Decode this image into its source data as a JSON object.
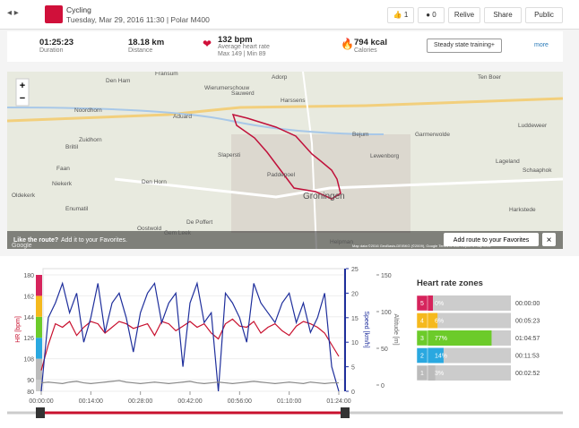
{
  "header": {
    "sport": "Cycling",
    "date": "Tuesday, Mar 29, 2016 11:30 | Polar M400",
    "likes": "1",
    "comments": "0",
    "buttons": [
      "Relive",
      "Share",
      "Public"
    ]
  },
  "summary": {
    "duration": "01:25:23",
    "duration_label": "Duration",
    "distance": "18.18 km",
    "distance_label": "Distance",
    "hr": "132 bpm",
    "hr_label": "Average heart rate",
    "hr_range": "Max 149 | Min 89",
    "calories": "794 kcal",
    "calories_label": "Calories",
    "training_button": "Steady state training+",
    "more": "more"
  },
  "map": {
    "labels": [
      "Den Ham",
      "Fransum",
      "Adorp",
      "Wierumerschouw",
      "Sauwerd",
      "Harssens",
      "Noordhorn",
      "Aduard",
      "Zuidhorn",
      "Briltil",
      "Slapersti",
      "Bejum",
      "Lewenborg",
      "Garmerwolde",
      "Ten Boer",
      "Luddeweer",
      "Lageland",
      "Schaaphok",
      "Faan",
      "Niekerk",
      "Oldekerk",
      "Den Horn",
      "Enumatil",
      "Paddepoel",
      "Groningen",
      "De Poffert",
      "Oostwold",
      "Gem Leek",
      "Helpman",
      "Harkstede"
    ],
    "like_text": "Like the route?",
    "add_link": "Add it to your Favorites.",
    "add_button": "Add route to your Favorites",
    "close": "×",
    "attribution": "Map data ©2016 GeoBasis-DE/BKG (©2009), Google  Terms of Use  Report a map error",
    "google": "Google"
  },
  "chart_data": {
    "type": "line",
    "ylabel": "HR [bpm]",
    "y2label": "Speed [km/h]",
    "y3label": "Altitude [m]",
    "x": [
      0,
      2,
      4,
      6,
      8,
      10,
      12,
      14,
      16,
      18,
      20,
      22,
      24,
      26,
      28,
      30,
      32,
      34,
      36,
      38,
      40,
      42,
      44,
      46,
      48,
      50,
      52,
      54,
      56,
      58,
      60,
      62,
      64,
      66,
      68,
      70,
      72,
      74,
      76,
      78,
      80,
      82,
      84
    ],
    "xlim": [
      0,
      84
    ],
    "xticks": [
      {
        "value": 0,
        "label": "00:00:00"
      },
      {
        "value": 14,
        "label": "00:14:00"
      },
      {
        "value": 28,
        "label": "00:28:00"
      },
      {
        "value": 42,
        "label": "00:42:00"
      },
      {
        "value": 56,
        "label": "00:56:00"
      },
      {
        "value": 70,
        "label": "01:10:00"
      },
      {
        "value": 84,
        "label": "01:24:00"
      }
    ],
    "ylim": [
      80,
      180
    ],
    "yticks": [
      80,
      90,
      108,
      126,
      144,
      162,
      180
    ],
    "y2lim": [
      0,
      25
    ],
    "y2ticks": [
      0,
      5,
      10,
      15,
      20,
      25
    ],
    "y3lim": [
      0,
      150
    ],
    "y3ticks": [
      0,
      50,
      100,
      150
    ],
    "series": [
      {
        "name": "HR",
        "color": "#c8102e",
        "values": [
          98,
          120,
          138,
          135,
          140,
          128,
          135,
          140,
          138,
          130,
          135,
          140,
          138,
          134,
          136,
          138,
          128,
          140,
          138,
          132,
          136,
          140,
          135,
          138,
          130,
          125,
          138,
          142,
          136,
          135,
          140,
          130,
          135,
          138,
          132,
          128,
          136,
          140,
          138,
          135,
          130,
          120,
          110
        ]
      },
      {
        "name": "Speed",
        "color": "#1f2f9c",
        "axis": "y2",
        "values": [
          0,
          15,
          18,
          22,
          16,
          20,
          10,
          15,
          22,
          12,
          18,
          20,
          15,
          8,
          16,
          20,
          22,
          14,
          18,
          20,
          5,
          18,
          22,
          14,
          16,
          0,
          20,
          18,
          15,
          10,
          22,
          18,
          16,
          14,
          18,
          20,
          14,
          18,
          12,
          15,
          20,
          5,
          0
        ]
      },
      {
        "name": "Altitude",
        "color": "#888888",
        "axis": "y3",
        "values": [
          3,
          4,
          3,
          2,
          4,
          5,
          3,
          2,
          3,
          4,
          5,
          6,
          4,
          3,
          2,
          3,
          4,
          3,
          2,
          3,
          4,
          5,
          3,
          2,
          3,
          4,
          3,
          2,
          3,
          4,
          5,
          4,
          3,
          2,
          3,
          4,
          3,
          2,
          4,
          3,
          2,
          3,
          3
        ]
      }
    ]
  },
  "zones": {
    "title": "Heart rate zones",
    "rows": [
      {
        "zone": "5",
        "color": "#d6245c",
        "percent": {
          "value": 0,
          "label": "0%"
        },
        "time": "00:00:00"
      },
      {
        "zone": "4",
        "color": "#f5b91d",
        "percent": {
          "value": 6,
          "label": "6%"
        },
        "time": "00:05:23"
      },
      {
        "zone": "3",
        "color": "#6ccb2a",
        "percent": {
          "value": 77,
          "label": "77%"
        },
        "time": "01:04:57"
      },
      {
        "zone": "2",
        "color": "#2aa8e0",
        "percent": {
          "value": 14,
          "label": "14%"
        },
        "time": "00:11:53"
      },
      {
        "zone": "1",
        "color": "#bbbbbb",
        "percent": {
          "value": 3,
          "label": "3%"
        },
        "time": "00:02:52"
      }
    ]
  }
}
